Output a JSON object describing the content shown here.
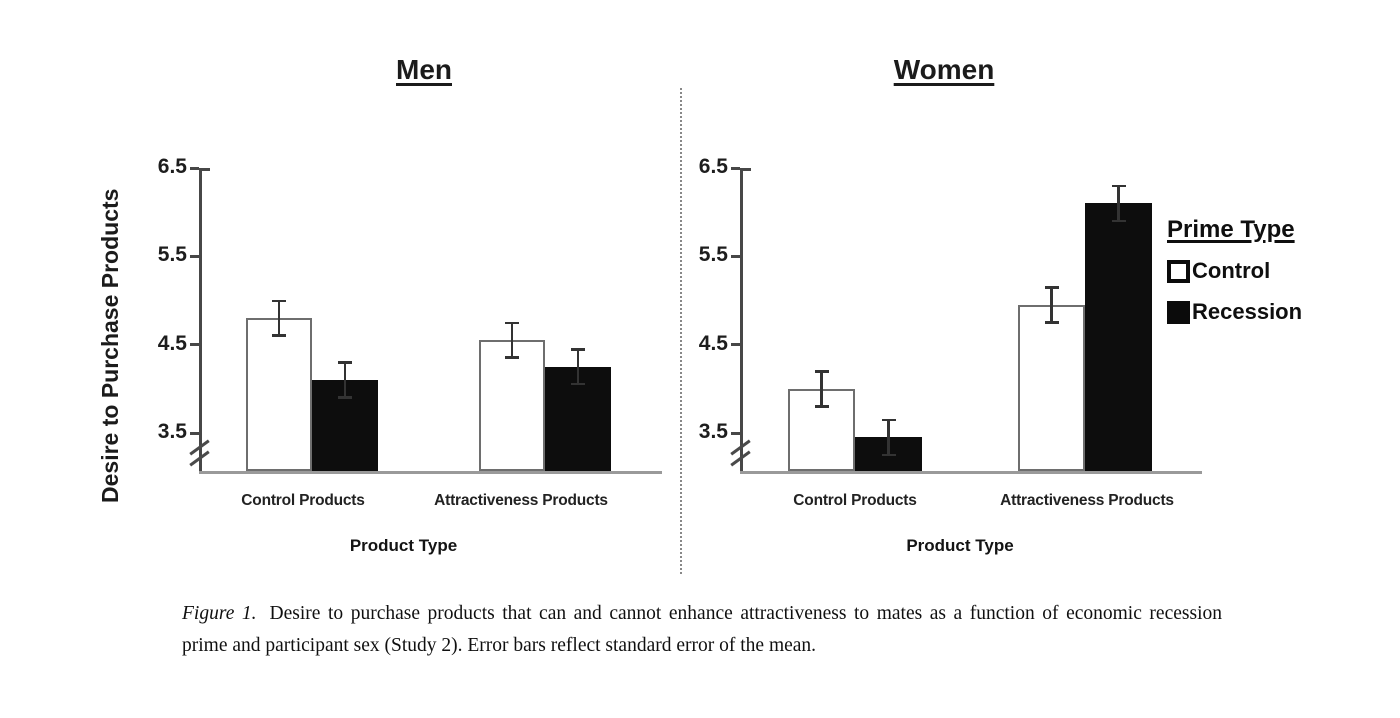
{
  "chart_data": [
    {
      "type": "bar",
      "title": "Men",
      "ylabel": "Desire to Purchase Products",
      "xlabel": "Product Type",
      "categories": [
        "Control Products",
        "Attractiveness Products"
      ],
      "yticks": [
        6.5,
        5.5,
        4.5,
        3.5
      ],
      "ylim": [
        3.5,
        6.5
      ],
      "axis_break_below": 3.5,
      "grid": false,
      "error_bars": "standard error of the mean",
      "series": [
        {
          "name": "Control",
          "fill": "#ffffff",
          "values": [
            4.8,
            4.55
          ],
          "errors": [
            0.2,
            0.2
          ]
        },
        {
          "name": "Recession",
          "fill": "#0d0d0d",
          "values": [
            4.1,
            4.25
          ],
          "errors": [
            0.2,
            0.2
          ]
        }
      ]
    },
    {
      "type": "bar",
      "title": "Women",
      "xlabel": "Product Type",
      "categories": [
        "Control Products",
        "Attractiveness Products"
      ],
      "yticks": [
        6.5,
        5.5,
        4.5,
        3.5
      ],
      "ylim": [
        3.5,
        6.5
      ],
      "axis_break_below": 3.5,
      "grid": false,
      "legend_position": "right",
      "error_bars": "standard error of the mean",
      "series": [
        {
          "name": "Control",
          "fill": "#ffffff",
          "values": [
            4.0,
            4.95
          ],
          "errors": [
            0.2,
            0.2
          ]
        },
        {
          "name": "Recession",
          "fill": "#0d0d0d",
          "values": [
            3.45,
            6.1
          ],
          "errors": [
            0.2,
            0.2
          ]
        }
      ]
    }
  ],
  "legend": {
    "title": "Prime Type",
    "items": [
      {
        "label": "Control",
        "fill": "#ffffff"
      },
      {
        "label": "Recession",
        "fill": "#0b0b0b"
      }
    ]
  },
  "caption": {
    "label": "Figure 1.",
    "text": "Desire to purchase products that can and cannot enhance attractiveness to mates as a function of economic recession prime and participant sex (Study 2). Error bars reflect standard error of the mean."
  },
  "colors": {
    "bar_black": "#0d0d0d",
    "bar_white": "#ffffff",
    "bar_outline": "#6e6e6e",
    "axis": "#474747",
    "baseline": "#9a9a9a",
    "text": "#171717",
    "background": "#ffffff"
  }
}
